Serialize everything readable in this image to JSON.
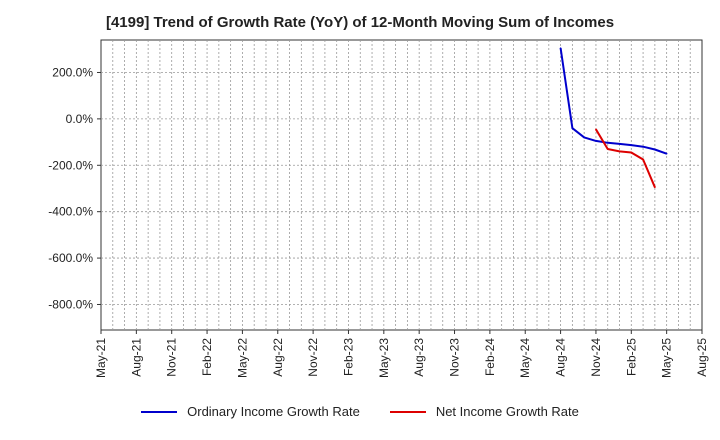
{
  "chart_data": {
    "type": "line",
    "title": "[4199]  Trend of Growth Rate (YoY) of 12-Month Moving Sum of Incomes",
    "xlabel": "",
    "ylabel": "",
    "x_ticks": [
      "May-21",
      "Aug-21",
      "Nov-21",
      "Feb-22",
      "May-22",
      "Aug-22",
      "Nov-22",
      "Feb-23",
      "May-23",
      "Aug-23",
      "Nov-23",
      "Feb-24",
      "May-24",
      "Aug-24",
      "Nov-24",
      "Feb-25",
      "May-25",
      "Aug-25"
    ],
    "y_ticks": [
      "200.0%",
      "0.0%",
      "-200.0%",
      "-400.0%",
      "-600.0%",
      "-800.0%"
    ],
    "y_tick_values": [
      200,
      0,
      -200,
      -400,
      -600,
      -800
    ],
    "ylim": [
      -910,
      340
    ],
    "xlim": [
      "2021-05",
      "2025-08"
    ],
    "grid": true,
    "legend_position": "bottom",
    "series": [
      {
        "name": "Ordinary Income Growth Rate",
        "color": "#0000cc",
        "points": [
          {
            "x": "2024-08",
            "y": 305
          },
          {
            "x": "2024-09",
            "y": -40
          },
          {
            "x": "2024-10",
            "y": -80
          },
          {
            "x": "2024-11",
            "y": -95
          },
          {
            "x": "2024-12",
            "y": -103
          },
          {
            "x": "2025-01",
            "y": -108
          },
          {
            "x": "2025-02",
            "y": -113
          },
          {
            "x": "2025-03",
            "y": -120
          },
          {
            "x": "2025-04",
            "y": -132
          },
          {
            "x": "2025-05",
            "y": -150
          }
        ]
      },
      {
        "name": "Net Income Growth Rate",
        "color": "#dd0000",
        "points": [
          {
            "x": "2024-11",
            "y": -45
          },
          {
            "x": "2024-12",
            "y": -130
          },
          {
            "x": "2025-01",
            "y": -140
          },
          {
            "x": "2025-02",
            "y": -145
          },
          {
            "x": "2025-03",
            "y": -175
          },
          {
            "x": "2025-04",
            "y": -295
          }
        ]
      }
    ]
  }
}
